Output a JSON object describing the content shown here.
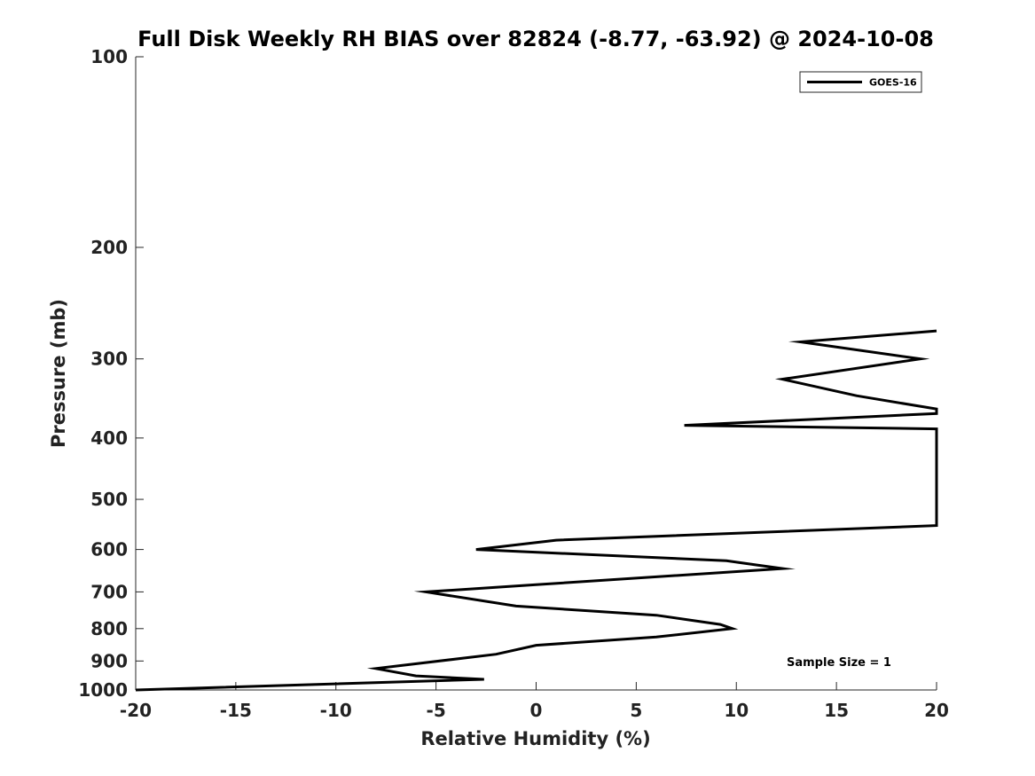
{
  "chart_data": {
    "type": "line",
    "title": "Full Disk Weekly RH BIAS over 82824 (-8.77, -63.92) @ 2024-10-08",
    "xlabel": "Relative Humidity (%)",
    "ylabel": "Pressure (mb)",
    "xlim": [
      -20,
      20
    ],
    "ylim": [
      1000,
      100
    ],
    "yscale": "log",
    "xticks": [
      -20,
      -15,
      -10,
      -5,
      0,
      5,
      10,
      15,
      20
    ],
    "xtick_labels": [
      "-20",
      "-15",
      "-10",
      "-5",
      "0",
      "5",
      "10",
      "15",
      "20"
    ],
    "yticks": [
      100,
      200,
      300,
      400,
      500,
      600,
      700,
      800,
      900,
      1000
    ],
    "ytick_labels": [
      "100",
      "200",
      "300",
      "400",
      "500",
      "600",
      "700",
      "800",
      "900",
      "1000"
    ],
    "grid": false,
    "legend_position": "top-right",
    "series": [
      {
        "name": "GOES-16",
        "color": "#000000",
        "points": [
          {
            "x": -20,
            "y": 1000
          },
          {
            "x": -2.6,
            "y": 962
          },
          {
            "x": -6.0,
            "y": 950
          },
          {
            "x": -8.0,
            "y": 925
          },
          {
            "x": -2.0,
            "y": 878
          },
          {
            "x": 0.0,
            "y": 850
          },
          {
            "x": 6.0,
            "y": 825
          },
          {
            "x": 9.8,
            "y": 800
          },
          {
            "x": 9.2,
            "y": 788
          },
          {
            "x": 6.0,
            "y": 762
          },
          {
            "x": -1.0,
            "y": 737
          },
          {
            "x": -5.5,
            "y": 700
          },
          {
            "x": 0.0,
            "y": 682
          },
          {
            "x": 12.3,
            "y": 643
          },
          {
            "x": 9.5,
            "y": 625
          },
          {
            "x": -3.0,
            "y": 600
          },
          {
            "x": 1.0,
            "y": 580
          },
          {
            "x": 20.0,
            "y": 550
          },
          {
            "x": 20.0,
            "y": 387
          },
          {
            "x": 7.4,
            "y": 382
          },
          {
            "x": 20.0,
            "y": 366
          },
          {
            "x": 20.0,
            "y": 360
          },
          {
            "x": 16.0,
            "y": 343
          },
          {
            "x": 12.3,
            "y": 323
          },
          {
            "x": 19.2,
            "y": 300
          },
          {
            "x": 13.2,
            "y": 282
          },
          {
            "x": 20.0,
            "y": 271
          }
        ]
      }
    ],
    "annotations": [
      {
        "text": "Sample Size = 1",
        "x": 15.9,
        "y": 900
      }
    ]
  }
}
